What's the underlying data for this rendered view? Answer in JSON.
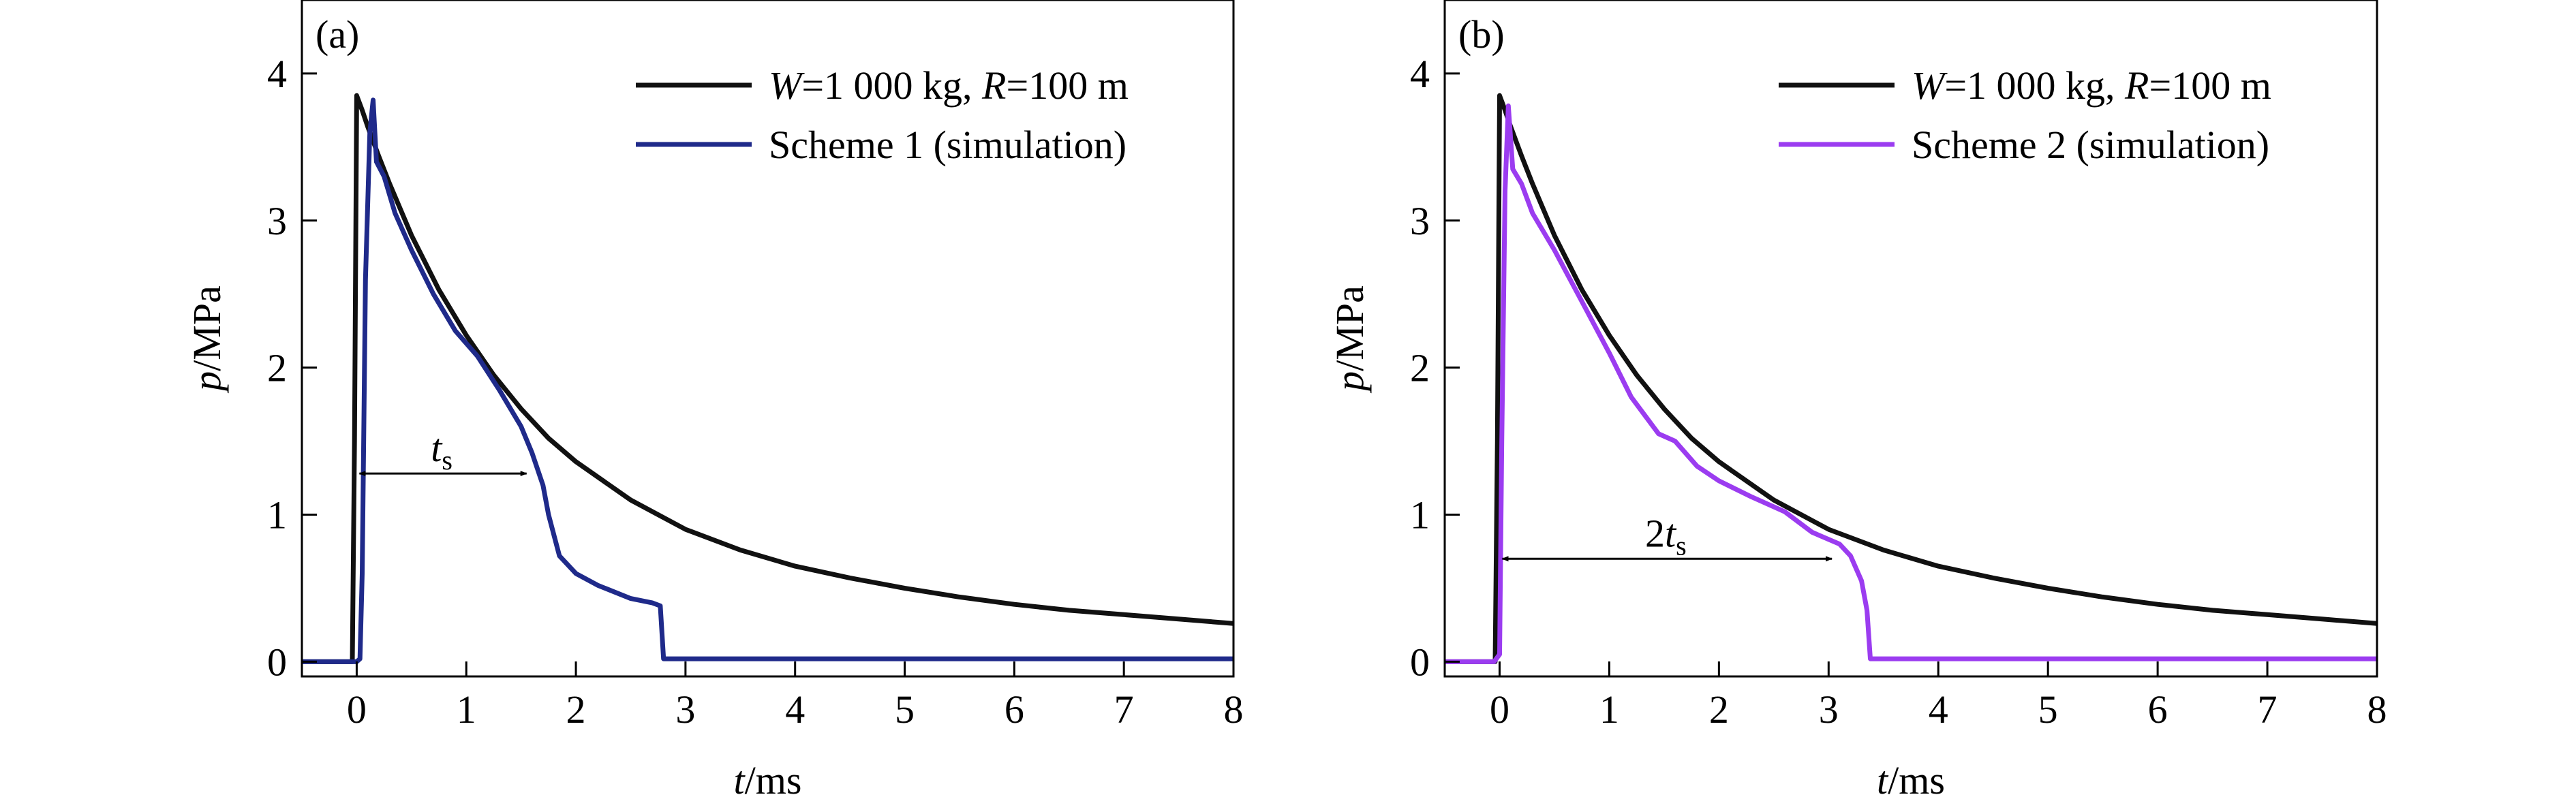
{
  "chart_data": [
    {
      "type": "line",
      "panel_label": "(a)",
      "xlabel": {
        "var": "t",
        "unit": "/ms"
      },
      "ylabel": {
        "var": "p",
        "unit": "/MPa"
      },
      "xlim": [
        -0.5,
        8
      ],
      "ylim": [
        -0.1,
        4.5
      ],
      "xticks": [
        0,
        1,
        2,
        3,
        4,
        5,
        6,
        7,
        8
      ],
      "yticks": [
        0,
        1,
        2,
        3,
        4
      ],
      "legend_position": "top-right",
      "series": [
        {
          "name_parts": [
            "W",
            "=1 000 kg, ",
            "R",
            "=100 m"
          ],
          "color": "#111111",
          "points": [
            [
              -0.5,
              0
            ],
            [
              -0.04,
              0
            ],
            [
              -0.02,
              1.5
            ],
            [
              0.0,
              3.85
            ],
            [
              0.05,
              3.75
            ],
            [
              0.1,
              3.64
            ],
            [
              0.2,
              3.44
            ],
            [
              0.3,
              3.25
            ],
            [
              0.5,
              2.9
            ],
            [
              0.75,
              2.53
            ],
            [
              1.0,
              2.22
            ],
            [
              1.25,
              1.95
            ],
            [
              1.5,
              1.72
            ],
            [
              1.75,
              1.52
            ],
            [
              2.0,
              1.36
            ],
            [
              2.5,
              1.1
            ],
            [
              3.0,
              0.9
            ],
            [
              3.5,
              0.76
            ],
            [
              4.0,
              0.65
            ],
            [
              4.5,
              0.57
            ],
            [
              5.0,
              0.5
            ],
            [
              5.5,
              0.44
            ],
            [
              6.0,
              0.39
            ],
            [
              6.5,
              0.35
            ],
            [
              7.0,
              0.32
            ],
            [
              7.5,
              0.29
            ],
            [
              8.0,
              0.26
            ]
          ]
        },
        {
          "name": "Scheme 1 (simulation)",
          "color": "#1f2a8a",
          "points": [
            [
              -0.5,
              0
            ],
            [
              0.0,
              0
            ],
            [
              0.03,
              0.02
            ],
            [
              0.05,
              0.6
            ],
            [
              0.08,
              2.6
            ],
            [
              0.12,
              3.6
            ],
            [
              0.15,
              3.82
            ],
            [
              0.18,
              3.4
            ],
            [
              0.25,
              3.3
            ],
            [
              0.35,
              3.05
            ],
            [
              0.5,
              2.8
            ],
            [
              0.7,
              2.5
            ],
            [
              0.9,
              2.25
            ],
            [
              1.1,
              2.08
            ],
            [
              1.3,
              1.85
            ],
            [
              1.5,
              1.6
            ],
            [
              1.6,
              1.42
            ],
            [
              1.7,
              1.2
            ],
            [
              1.75,
              1.0
            ],
            [
              1.85,
              0.72
            ],
            [
              2.0,
              0.6
            ],
            [
              2.2,
              0.52
            ],
            [
              2.5,
              0.43
            ],
            [
              2.7,
              0.4
            ],
            [
              2.77,
              0.38
            ],
            [
              2.8,
              0.02
            ],
            [
              8.0,
              0.02
            ]
          ]
        }
      ],
      "annotation": {
        "label_var": "t",
        "label_sub": "s",
        "y": 1.28,
        "x_start": 0.0,
        "x_end": 1.55
      }
    },
    {
      "type": "line",
      "panel_label": "(b)",
      "xlabel": {
        "var": "t",
        "unit": "/ms"
      },
      "ylabel": {
        "var": "p",
        "unit": "/MPa"
      },
      "xlim": [
        -0.5,
        8
      ],
      "ylim": [
        -0.1,
        4.5
      ],
      "xticks": [
        0,
        1,
        2,
        3,
        4,
        5,
        6,
        7,
        8
      ],
      "yticks": [
        0,
        1,
        2,
        3,
        4
      ],
      "legend_position": "top-right",
      "series": [
        {
          "name_parts": [
            "W",
            "=1 000 kg, ",
            "R",
            "=100 m"
          ],
          "color": "#111111",
          "points": [
            [
              -0.5,
              0
            ],
            [
              -0.04,
              0
            ],
            [
              -0.02,
              1.5
            ],
            [
              0.0,
              3.85
            ],
            [
              0.05,
              3.75
            ],
            [
              0.1,
              3.64
            ],
            [
              0.2,
              3.44
            ],
            [
              0.3,
              3.25
            ],
            [
              0.5,
              2.9
            ],
            [
              0.75,
              2.53
            ],
            [
              1.0,
              2.22
            ],
            [
              1.25,
              1.95
            ],
            [
              1.5,
              1.72
            ],
            [
              1.75,
              1.52
            ],
            [
              2.0,
              1.36
            ],
            [
              2.5,
              1.1
            ],
            [
              3.0,
              0.9
            ],
            [
              3.5,
              0.76
            ],
            [
              4.0,
              0.65
            ],
            [
              4.5,
              0.57
            ],
            [
              5.0,
              0.5
            ],
            [
              5.5,
              0.44
            ],
            [
              6.0,
              0.39
            ],
            [
              6.5,
              0.35
            ],
            [
              7.0,
              0.32
            ],
            [
              7.5,
              0.29
            ],
            [
              8.0,
              0.26
            ]
          ]
        },
        {
          "name": "Scheme 2 (simulation)",
          "color": "#9b3cf0",
          "points": [
            [
              -0.5,
              0
            ],
            [
              -0.05,
              0
            ],
            [
              0.0,
              0.05
            ],
            [
              0.02,
              1.5
            ],
            [
              0.05,
              3.2
            ],
            [
              0.08,
              3.78
            ],
            [
              0.12,
              3.35
            ],
            [
              0.2,
              3.25
            ],
            [
              0.3,
              3.05
            ],
            [
              0.5,
              2.8
            ],
            [
              0.75,
              2.45
            ],
            [
              1.0,
              2.1
            ],
            [
              1.2,
              1.8
            ],
            [
              1.45,
              1.55
            ],
            [
              1.6,
              1.5
            ],
            [
              1.8,
              1.33
            ],
            [
              2.0,
              1.23
            ],
            [
              2.3,
              1.12
            ],
            [
              2.6,
              1.02
            ],
            [
              2.85,
              0.88
            ],
            [
              3.1,
              0.8
            ],
            [
              3.2,
              0.72
            ],
            [
              3.3,
              0.55
            ],
            [
              3.35,
              0.35
            ],
            [
              3.38,
              0.02
            ],
            [
              8.0,
              0.02
            ]
          ]
        }
      ],
      "annotation": {
        "label_num": "2",
        "label_var": "t",
        "label_sub": "s",
        "y": 0.7,
        "x_start": 0.0,
        "x_end": 3.03
      }
    }
  ]
}
